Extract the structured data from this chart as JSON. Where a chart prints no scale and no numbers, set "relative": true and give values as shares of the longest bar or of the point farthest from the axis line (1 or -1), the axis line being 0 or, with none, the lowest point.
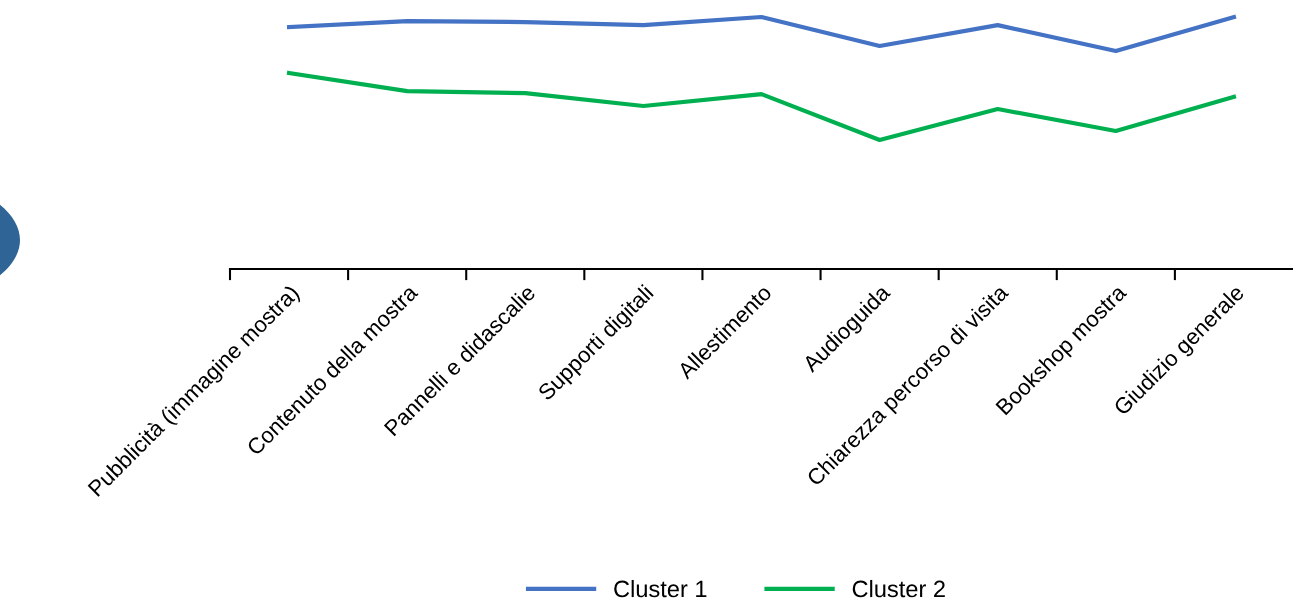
{
  "chart_data": {
    "type": "line",
    "relative": true,
    "categories": [
      "Pubblicità (immagine mostra)",
      "Contenuto della mostra",
      "Pannelli e didascalie",
      "Supporti digitali",
      "Allestimento",
      "Audioguida",
      "Chiarezza percorso di visita",
      "Bookshop mostra",
      "Giudizio generale"
    ],
    "series": [
      {
        "name": "Cluster 1",
        "color": "#4472c4",
        "values": [
          0.96,
          0.984,
          0.98,
          0.968,
          1,
          0.885,
          0.968,
          0.865,
          1
        ]
      },
      {
        "name": "Cluster 2",
        "color": "#00b050",
        "values": [
          0.778,
          0.706,
          0.698,
          0.647,
          0.694,
          0.512,
          0.635,
          0.548,
          0.683
        ]
      }
    ],
    "legend": "bottom",
    "grid": false,
    "marker": "none",
    "line_style": "solid"
  }
}
